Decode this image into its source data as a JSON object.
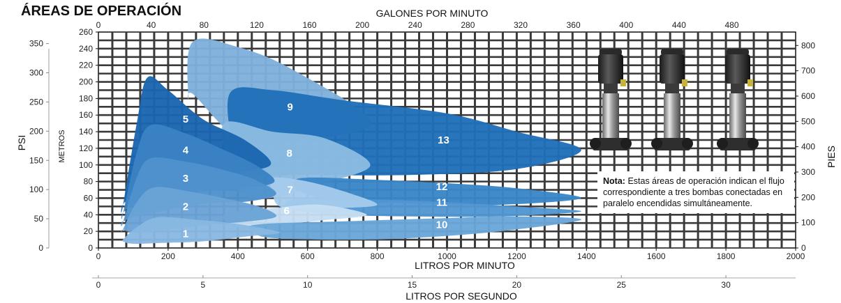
{
  "chart_data": {
    "type": "area",
    "title": "ÁREAS DE OPERACIÓN",
    "x_axes": {
      "top": {
        "label": "GALONES POR MINUTO",
        "ticks": [
          0,
          40,
          80,
          120,
          160,
          200,
          240,
          280,
          320,
          360,
          400,
          440,
          480
        ]
      },
      "bottom": {
        "label": "LITROS POR MINUTO",
        "ticks": [
          0,
          200,
          400,
          600,
          800,
          1000,
          1200,
          1400,
          1600,
          1800,
          2000
        ],
        "xlim": [
          0,
          2000
        ]
      },
      "bottom_secondary": {
        "label": "LITROS POR SEGUNDO",
        "ticks": [
          0,
          5,
          10,
          15,
          20,
          25,
          30
        ]
      }
    },
    "y_axes": {
      "meters": {
        "label": "METROS",
        "ticks": [
          0,
          20,
          40,
          60,
          80,
          100,
          120,
          140,
          160,
          180,
          200,
          220,
          240,
          260
        ],
        "ylim": [
          0,
          260
        ]
      },
      "psi": {
        "label": "PSI",
        "ticks": [
          0,
          50,
          100,
          150,
          200,
          250,
          300,
          350
        ]
      },
      "feet": {
        "label": "PIES",
        "ticks": [
          0,
          100,
          200,
          300,
          400,
          500,
          600,
          700,
          800
        ]
      }
    },
    "grid": true,
    "series": [
      {
        "name": "9",
        "color": "#7fb1dc",
        "points": [
          [
            258,
            182
          ],
          [
            270,
            248
          ],
          [
            400,
            242
          ],
          [
            560,
            214
          ],
          [
            780,
            150
          ],
          [
            530,
            128
          ],
          [
            400,
            132
          ],
          [
            272,
            185
          ]
        ]
      },
      {
        "name": "13",
        "color": "#1f6fb8",
        "points": [
          [
            380,
            188
          ],
          [
            500,
            190
          ],
          [
            700,
            178
          ],
          [
            1000,
            162
          ],
          [
            1200,
            140
          ],
          [
            1385,
            118
          ],
          [
            1200,
            95
          ],
          [
            900,
            88
          ],
          [
            600,
            88
          ],
          [
            400,
            90
          ],
          [
            380,
            130
          ]
        ]
      },
      {
        "name": "8",
        "color": "#8bbbe2",
        "points": [
          [
            360,
            150
          ],
          [
            500,
            140
          ],
          [
            650,
            132
          ],
          [
            780,
            100
          ],
          [
            650,
            78
          ],
          [
            520,
            62
          ],
          [
            420,
            62
          ],
          [
            380,
            90
          ]
        ]
      },
      {
        "name": "12",
        "color": "#3a86c9",
        "points": [
          [
            580,
            84
          ],
          [
            800,
            82
          ],
          [
            1000,
            78
          ],
          [
            1200,
            72
          ],
          [
            1385,
            60
          ],
          [
            1150,
            52
          ],
          [
            900,
            54
          ],
          [
            700,
            56
          ],
          [
            580,
            68
          ]
        ]
      },
      {
        "name": "11",
        "color": "#5196d2",
        "points": [
          [
            560,
            58
          ],
          [
            800,
            58
          ],
          [
            1000,
            55
          ],
          [
            1200,
            50
          ],
          [
            1385,
            44
          ],
          [
            1150,
            38
          ],
          [
            900,
            38
          ],
          [
            700,
            40
          ],
          [
            560,
            46
          ]
        ]
      },
      {
        "name": "7",
        "color": "#a4cbec",
        "points": [
          [
            500,
            84
          ],
          [
            600,
            80
          ],
          [
            720,
            66
          ],
          [
            800,
            52
          ],
          [
            700,
            48
          ],
          [
            600,
            46
          ],
          [
            520,
            50
          ],
          [
            500,
            66
          ]
        ]
      },
      {
        "name": "6",
        "color": "#c6def3",
        "points": [
          [
            370,
            42
          ],
          [
            500,
            48
          ],
          [
            640,
            52
          ],
          [
            770,
            40
          ],
          [
            660,
            34
          ],
          [
            520,
            28
          ],
          [
            420,
            24
          ],
          [
            370,
            30
          ]
        ]
      },
      {
        "name": "10",
        "color": "#6aa7da",
        "points": [
          [
            450,
            28
          ],
          [
            700,
            32
          ],
          [
            1000,
            36
          ],
          [
            1200,
            38
          ],
          [
            1385,
            34
          ],
          [
            1150,
            20
          ],
          [
            900,
            12
          ],
          [
            700,
            10
          ],
          [
            500,
            12
          ],
          [
            450,
            18
          ]
        ]
      },
      {
        "name": "5",
        "color": "#1a66b0",
        "points": [
          [
            70,
            50
          ],
          [
            110,
            150
          ],
          [
            140,
            205
          ],
          [
            200,
            190
          ],
          [
            300,
            155
          ],
          [
            420,
            130
          ],
          [
            495,
            102
          ],
          [
            420,
            92
          ],
          [
            300,
            88
          ],
          [
            190,
            78
          ],
          [
            110,
            70
          ],
          [
            70,
            52
          ]
        ]
      },
      {
        "name": "4",
        "color": "#3a82c4",
        "points": [
          [
            70,
            40
          ],
          [
            110,
            115
          ],
          [
            150,
            148
          ],
          [
            250,
            138
          ],
          [
            350,
            120
          ],
          [
            450,
            100
          ],
          [
            505,
            80
          ],
          [
            420,
            72
          ],
          [
            300,
            68
          ],
          [
            180,
            60
          ],
          [
            100,
            52
          ],
          [
            70,
            42
          ]
        ]
      },
      {
        "name": "3",
        "color": "#4f92cd",
        "points": [
          [
            70,
            30
          ],
          [
            110,
            85
          ],
          [
            150,
            108
          ],
          [
            250,
            104
          ],
          [
            350,
            95
          ],
          [
            450,
            82
          ],
          [
            510,
            65
          ],
          [
            430,
            56
          ],
          [
            320,
            54
          ],
          [
            200,
            46
          ],
          [
            110,
            38
          ],
          [
            70,
            32
          ]
        ]
      },
      {
        "name": "2",
        "color": "#6aa3d6",
        "points": [
          [
            70,
            22
          ],
          [
            110,
            55
          ],
          [
            160,
            73
          ],
          [
            260,
            68
          ],
          [
            360,
            60
          ],
          [
            460,
            50
          ],
          [
            510,
            38
          ],
          [
            430,
            32
          ],
          [
            320,
            28
          ],
          [
            200,
            22
          ],
          [
            110,
            18
          ],
          [
            70,
            22
          ]
        ]
      },
      {
        "name": "1",
        "color": "#88b8e2",
        "points": [
          [
            70,
            10
          ],
          [
            110,
            25
          ],
          [
            170,
            37
          ],
          [
            280,
            34
          ],
          [
            380,
            30
          ],
          [
            470,
            24
          ],
          [
            520,
            18
          ],
          [
            430,
            14
          ],
          [
            300,
            8
          ],
          [
            180,
            6
          ],
          [
            100,
            5
          ],
          [
            70,
            8
          ]
        ]
      }
    ],
    "region_labels": [
      {
        "text": "5",
        "x": 250,
        "y": 155
      },
      {
        "text": "4",
        "x": 250,
        "y": 118
      },
      {
        "text": "3",
        "x": 250,
        "y": 84
      },
      {
        "text": "2",
        "x": 250,
        "y": 50
      },
      {
        "text": "1",
        "x": 250,
        "y": 17
      },
      {
        "text": "9",
        "x": 550,
        "y": 170
      },
      {
        "text": "8",
        "x": 548,
        "y": 114
      },
      {
        "text": "7",
        "x": 550,
        "y": 70
      },
      {
        "text": "6",
        "x": 540,
        "y": 45
      },
      {
        "text": "13",
        "x": 990,
        "y": 130
      },
      {
        "text": "12",
        "x": 985,
        "y": 74
      },
      {
        "text": "11",
        "x": 985,
        "y": 55
      },
      {
        "text": "10",
        "x": 985,
        "y": 28
      }
    ]
  },
  "note": {
    "bold": "Nota:",
    "text": "Estas áreas de operación indican el flujo correspondiente a tres bombas conectadas en paralelo encendidas simultáneamente."
  }
}
